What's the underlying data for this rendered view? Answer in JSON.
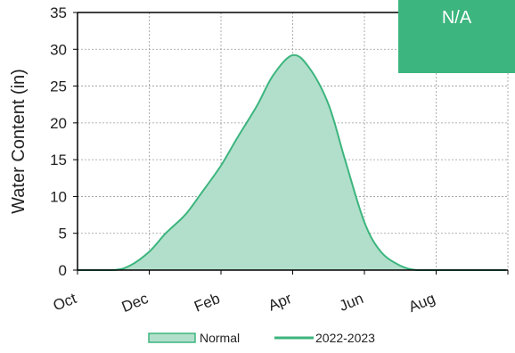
{
  "chart_data": {
    "type": "area",
    "ylabel": "Water Content (in)",
    "xlabel": "",
    "ylim": [
      0,
      35
    ],
    "yticks": [
      "0",
      "5",
      "10",
      "15",
      "20",
      "25",
      "30",
      "35"
    ],
    "xticks": [
      "Oct",
      "Dec",
      "Feb",
      "Apr",
      "Jun",
      "Aug"
    ],
    "grid": true,
    "legend_position": "bottom",
    "series": [
      {
        "name": "Normal",
        "kind": "area",
        "color": "#3cb57e",
        "fill": "#b2dfcb",
        "x": [
          "Oct 1",
          "Nov 1",
          "Nov 15",
          "Dec 1",
          "Dec 15",
          "Jan 1",
          "Jan 15",
          "Feb 1",
          "Feb 15",
          "Mar 1",
          "Mar 15",
          "Apr 1",
          "Apr 15",
          "May 1",
          "May 15",
          "Jun 1",
          "Jun 15",
          "Jul 1",
          "Jul 15",
          "Aug 1",
          "Aug 15",
          "Sep 1",
          "Sep 30"
        ],
        "values": [
          0,
          0,
          0.6,
          2.5,
          5.0,
          7.5,
          10.5,
          14.2,
          18.0,
          22.3,
          26.5,
          29.2,
          27.5,
          22.5,
          15.0,
          6.5,
          2.5,
          0.6,
          0,
          0,
          0,
          0,
          0
        ]
      },
      {
        "name": "2022-2023",
        "kind": "line",
        "color": "#3cb57e",
        "values": []
      }
    ]
  },
  "status_text": "N/A"
}
